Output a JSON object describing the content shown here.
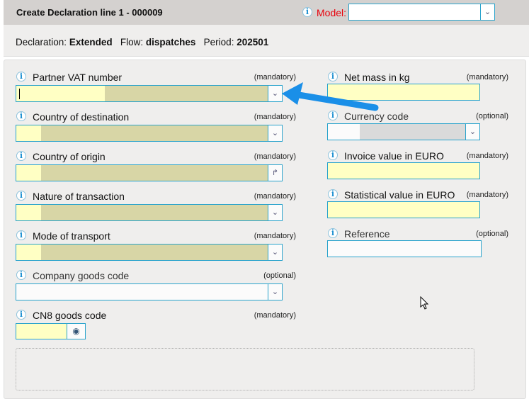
{
  "header": {
    "title": "Create Declaration line 1 - 000009",
    "model_label": "Model:",
    "model_value": ""
  },
  "info": {
    "declaration_label": "Declaration:",
    "declaration": "Extended",
    "flow_label": "Flow:",
    "flow": "dispatches",
    "period_label": "Period:",
    "period": "202501"
  },
  "colors": {
    "mandatory_bg": "#ffffc4",
    "prefilled_bg": "#d8d6a6",
    "border": "#29a3cc",
    "model_label": "#e8000b",
    "arrow": "#1a8fe8"
  },
  "left_fields": [
    {
      "name": "partner-vat-number",
      "label": "Partner VAT number",
      "req": "(mandatory)",
      "type": "select",
      "icon": "chevron-double-down-icon",
      "value": ""
    },
    {
      "name": "country-of-destination",
      "label": "Country of destination",
      "req": "(mandatory)",
      "type": "select",
      "icon": "chevron-double-down-icon",
      "value": ""
    },
    {
      "name": "country-of-origin",
      "label": "Country of origin",
      "req": "(mandatory)",
      "type": "select",
      "icon": "corner-arrow-icon",
      "value": ""
    },
    {
      "name": "nature-of-transaction",
      "label": "Nature of transaction",
      "req": "(mandatory)",
      "type": "select",
      "icon": "chevron-double-down-icon",
      "value": ""
    },
    {
      "name": "mode-of-transport",
      "label": "Mode of transport",
      "req": "(mandatory)",
      "type": "select",
      "icon": "chevron-double-down-icon",
      "value": ""
    },
    {
      "name": "company-goods-code",
      "label": "Company goods code",
      "req": "(optional)",
      "type": "select",
      "icon": "chevron-double-down-icon",
      "value": ""
    },
    {
      "name": "cn8-goods-code",
      "label": "CN8 goods code",
      "req": "(mandatory)",
      "type": "lookup",
      "icon": "eye-icon",
      "value": ""
    }
  ],
  "right_fields": [
    {
      "name": "net-mass",
      "label": "Net mass in kg",
      "req": "(mandatory)",
      "type": "text",
      "value": ""
    },
    {
      "name": "currency-code",
      "label": "Currency code",
      "req": "(optional)",
      "type": "select",
      "icon": "chevron-double-down-icon",
      "value": ""
    },
    {
      "name": "invoice-value",
      "label": "Invoice value in EURO",
      "req": "(mandatory)",
      "type": "text",
      "value": ""
    },
    {
      "name": "statistical-value",
      "label": "Statistical value in EURO",
      "req": "(mandatory)",
      "type": "text",
      "value": ""
    },
    {
      "name": "reference",
      "label": "Reference",
      "req": "(optional)",
      "type": "text",
      "value": ""
    }
  ]
}
